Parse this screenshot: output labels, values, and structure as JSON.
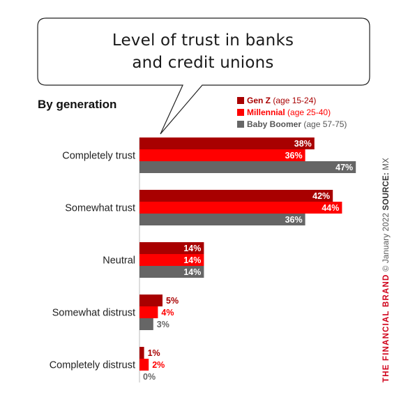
{
  "title_line1": "Level of trust in banks",
  "title_line2": "and credit unions",
  "subtitle": "By generation",
  "legend": [
    {
      "name": "Gen Z",
      "age": "(age 15-24)",
      "color": "#a80000"
    },
    {
      "name": "Millennial",
      "age": "(age 25-40)",
      "color": "#ff0000"
    },
    {
      "name": "Baby Boomer",
      "age": "(age 57-75)",
      "color": "#666666"
    }
  ],
  "sidebar": {
    "brand": "THE FINANCIAL BRAND",
    "date": "© January 2022",
    "source_label": "SOURCE:",
    "source": "MX"
  },
  "chart_data": {
    "type": "bar",
    "orientation": "horizontal",
    "title": "Level of trust in banks and credit unions",
    "subtitle": "By generation",
    "categories": [
      "Completely trust",
      "Somewhat trust",
      "Neutral",
      "Somewhat distrust",
      "Completely distrust"
    ],
    "series": [
      {
        "name": "Gen Z (age 15-24)",
        "color": "#a80000",
        "values": [
          38,
          42,
          14,
          5,
          1
        ]
      },
      {
        "name": "Millennial (age 25-40)",
        "color": "#ff0000",
        "values": [
          36,
          44,
          14,
          4,
          2
        ]
      },
      {
        "name": "Baby Boomer (age 57-75)",
        "color": "#666666",
        "values": [
          47,
          36,
          14,
          3,
          0
        ]
      }
    ],
    "value_suffix": "%",
    "xlim": [
      0,
      50
    ],
    "grid": false,
    "legend_position": "top-right"
  }
}
